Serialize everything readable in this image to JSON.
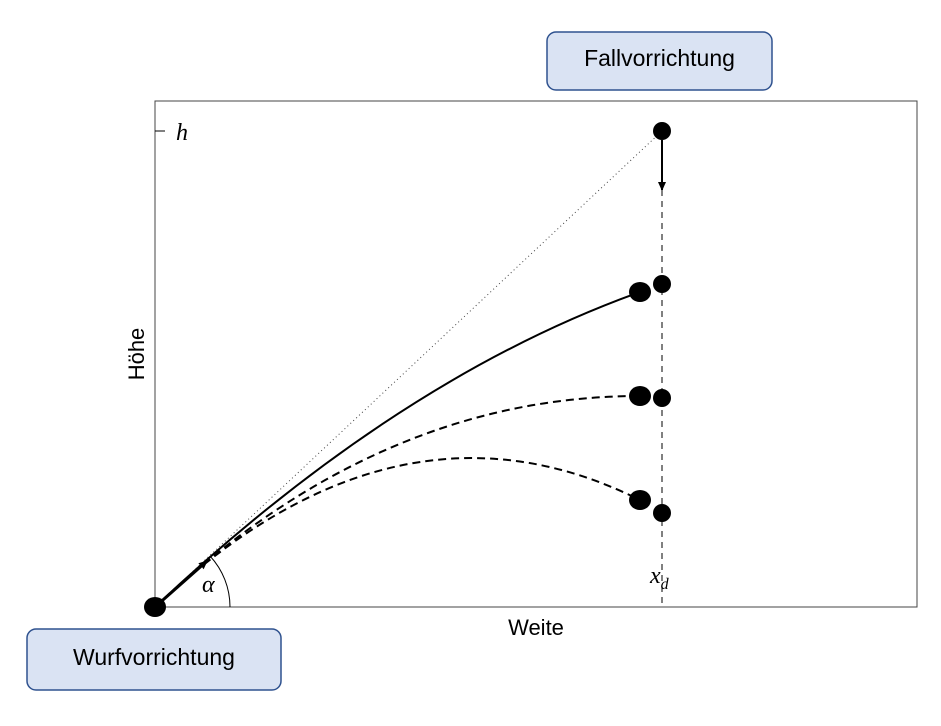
{
  "labels": {
    "drop_device": "Fallvorrichtung",
    "launch_device": "Wurfvorrichtung",
    "y_axis": "Höhe",
    "x_axis": "Weite",
    "height_mark": "h",
    "angle": "α",
    "distance_mark": {
      "base": "x",
      "sub": "d"
    }
  }
}
